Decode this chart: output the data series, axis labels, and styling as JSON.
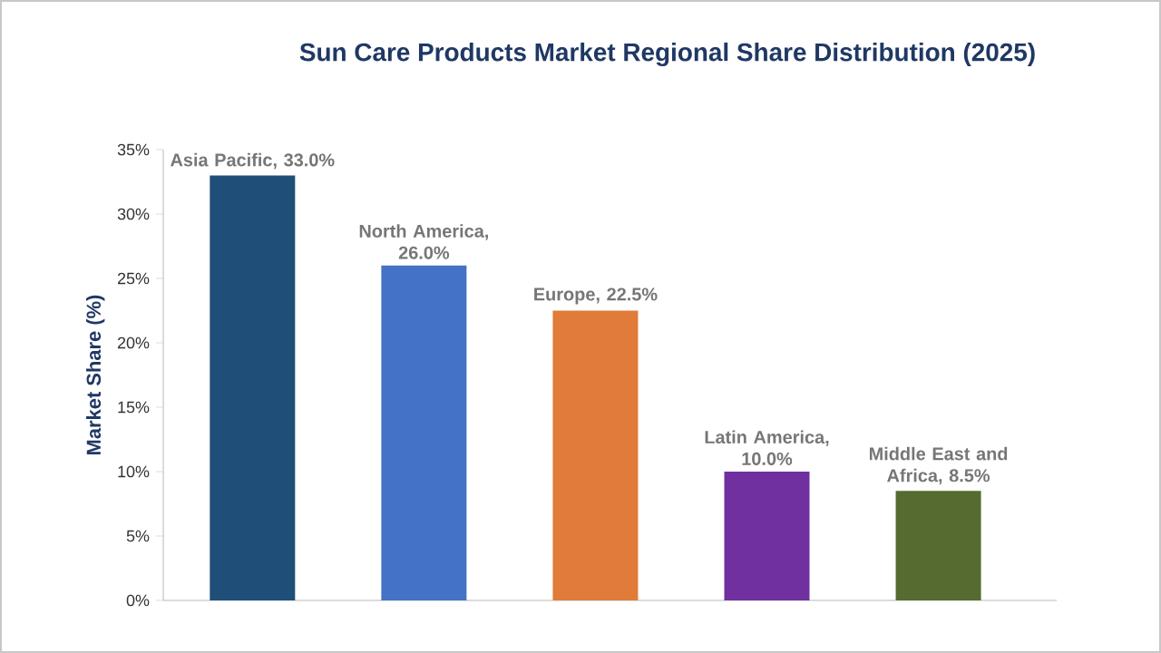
{
  "chart_data": {
    "type": "bar",
    "title": "Sun Care Products Market Regional Share Distribution (2025)",
    "ylabel": "Market Share (%)",
    "categories": [
      null,
      null,
      null,
      null,
      null
    ],
    "values": [
      33.0,
      26.0,
      22.5,
      10.0,
      8.5
    ],
    "colors": [
      "#1f4e79",
      "#4472c4",
      "#e07b39",
      "#7030a0",
      "#556b2f"
    ],
    "value_labels": [
      "Asia Pacific, 33.0%",
      "North America, 26.0%",
      "Europe, 22.5%",
      "Latin America, 10.0%",
      "Middle East and Africa, 8.5%"
    ],
    "ylim": [
      0,
      35
    ],
    "yticks": [
      {
        "value": 0,
        "label": "0%"
      },
      {
        "value": 5,
        "label": "5%"
      },
      {
        "value": 10,
        "label": "10%"
      },
      {
        "value": 15,
        "label": "15%"
      },
      {
        "value": 20,
        "label": "20%"
      },
      {
        "value": 25,
        "label": "25%"
      },
      {
        "value": 30,
        "label": "30%"
      },
      {
        "value": 35,
        "label": "35%"
      }
    ],
    "grid": false
  }
}
